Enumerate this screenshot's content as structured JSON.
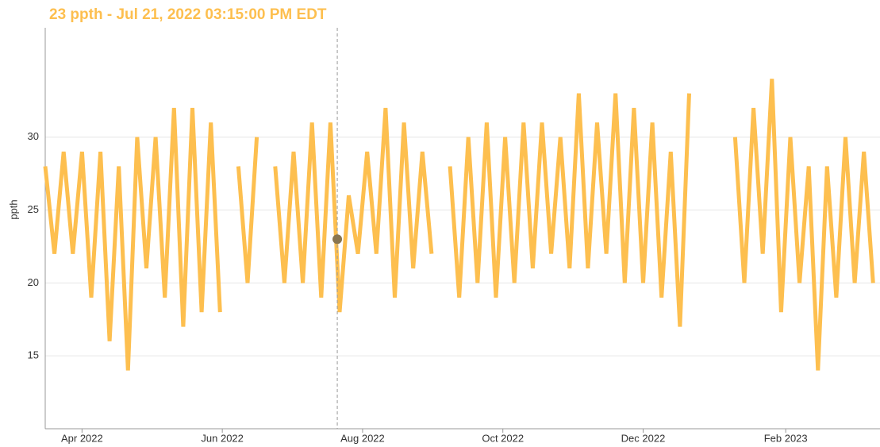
{
  "chart_data": {
    "type": "line",
    "title": "23 ppth - Jul 21, 2022 03:15:00 PM EDT",
    "y_label": "ppth",
    "x": [
      "2022-03-16",
      "2022-03-20",
      "2022-03-24",
      "2022-03-28",
      "2022-04-01",
      "2022-04-05",
      "2022-04-09",
      "2022-04-13",
      "2022-04-17",
      "2022-04-21",
      "2022-04-25",
      "2022-04-29",
      "2022-05-03",
      "2022-05-07",
      "2022-05-11",
      "2022-05-15",
      "2022-05-19",
      "2022-05-23",
      "2022-05-27",
      "2022-05-31",
      "2022-06-04",
      "2022-06-08",
      "2022-06-12",
      "2022-06-16",
      "2022-06-20",
      "2022-06-24",
      "2022-06-28",
      "2022-07-02",
      "2022-07-06",
      "2022-07-10",
      "2022-07-14",
      "2022-07-18",
      "2022-07-22",
      "2022-07-26",
      "2022-07-30",
      "2022-08-03",
      "2022-08-07",
      "2022-08-11",
      "2022-08-15",
      "2022-08-19",
      "2022-08-23",
      "2022-08-27",
      "2022-08-31",
      "2022-09-04",
      "2022-09-08",
      "2022-09-12",
      "2022-09-16",
      "2022-09-20",
      "2022-09-24",
      "2022-09-28",
      "2022-10-02",
      "2022-10-06",
      "2022-10-10",
      "2022-10-14",
      "2022-10-18",
      "2022-10-22",
      "2022-10-26",
      "2022-10-30",
      "2022-11-03",
      "2022-11-07",
      "2022-11-11",
      "2022-11-15",
      "2022-11-19",
      "2022-11-23",
      "2022-11-27",
      "2022-12-01",
      "2022-12-05",
      "2022-12-09",
      "2022-12-13",
      "2022-12-17",
      "2022-12-21",
      "2022-12-25",
      "2022-12-29",
      "2023-01-02",
      "2023-01-06",
      "2023-01-10",
      "2023-01-14",
      "2023-01-18",
      "2023-01-22",
      "2023-01-26",
      "2023-01-30",
      "2023-02-03",
      "2023-02-07",
      "2023-02-11",
      "2023-02-15",
      "2023-02-19",
      "2023-02-23",
      "2023-02-27",
      "2023-03-03",
      "2023-03-07",
      "2023-03-11"
    ],
    "series": [
      {
        "name": "ppth",
        "color": "#fdbf4f",
        "values": [
          28,
          22,
          29,
          22,
          29,
          19,
          29,
          16,
          28,
          14,
          30,
          21,
          30,
          19,
          32,
          17,
          32,
          18,
          31,
          18,
          null,
          28,
          20,
          30,
          null,
          28,
          20,
          29,
          20,
          31,
          19,
          31,
          18,
          26,
          22,
          29,
          22,
          32,
          19,
          31,
          21,
          29,
          22,
          null,
          28,
          19,
          30,
          20,
          31,
          19,
          30,
          20,
          31,
          21,
          31,
          22,
          30,
          21,
          33,
          21,
          31,
          22,
          33,
          20,
          32,
          20,
          31,
          19,
          29,
          17,
          33,
          null,
          null,
          null,
          null,
          30,
          20,
          32,
          22,
          34,
          18,
          30,
          20,
          28,
          14,
          28,
          19,
          30,
          20,
          29,
          20
        ]
      }
    ],
    "highlight": {
      "x": "2022-07-21",
      "value": 23,
      "color": "#8a7650"
    },
    "xlim": [
      "2022-03-16",
      "2023-03-14"
    ],
    "xticks": [
      {
        "value": "2022-04-01",
        "label": "Apr 2022"
      },
      {
        "value": "2022-06-01",
        "label": "Jun 2022"
      },
      {
        "value": "2022-08-01",
        "label": "Aug 2022"
      },
      {
        "value": "2022-10-01",
        "label": "Oct 2022"
      },
      {
        "value": "2022-12-01",
        "label": "Dec 2022"
      },
      {
        "value": "2023-02-01",
        "label": "Feb 2023"
      }
    ],
    "ylim": [
      10,
      37.5
    ],
    "yticks": [
      15,
      20,
      25,
      30
    ],
    "grid": true
  }
}
